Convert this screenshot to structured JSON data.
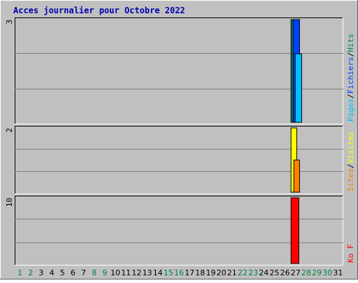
{
  "title": "Acces journalier pour Octobre 2022",
  "colors": {
    "title": "#0000b0",
    "background": "#c0c0c0",
    "hits": "#00805c",
    "files": "#0040ff",
    "pages": "#00c0ff",
    "visits": "#ffff00",
    "sites": "#ff8000",
    "kbytes": "#ff0000",
    "weekend_label": "#008040",
    "weekday_label": "#000000"
  },
  "chart_data": [
    {
      "type": "bar",
      "panel": "hits-files-pages",
      "ymax_label": "3",
      "ylim": [
        0,
        3
      ],
      "x": [
        1,
        2,
        3,
        4,
        5,
        6,
        7,
        8,
        9,
        10,
        11,
        12,
        13,
        14,
        15,
        16,
        17,
        18,
        19,
        20,
        21,
        22,
        23,
        24,
        25,
        26,
        27,
        28,
        29,
        30,
        31
      ],
      "x_label_colors": [
        "green",
        "green",
        "black",
        "black",
        "black",
        "black",
        "black",
        "green",
        "green",
        "black",
        "black",
        "black",
        "black",
        "black",
        "green",
        "green",
        "black",
        "black",
        "black",
        "black",
        "black",
        "green",
        "green",
        "black",
        "black",
        "black",
        "black",
        "green",
        "green",
        "green",
        "black"
      ],
      "series": [
        {
          "name": "Hits",
          "values": [
            0,
            0,
            0,
            0,
            0,
            0,
            0,
            0,
            0,
            0,
            0,
            0,
            0,
            0,
            0,
            0,
            0,
            0,
            0,
            0,
            0,
            0,
            0,
            0,
            0,
            0,
            3,
            0,
            0,
            0,
            0
          ]
        },
        {
          "name": "Fichiers",
          "values": [
            0,
            0,
            0,
            0,
            0,
            0,
            0,
            0,
            0,
            0,
            0,
            0,
            0,
            0,
            0,
            0,
            0,
            0,
            0,
            0,
            0,
            0,
            0,
            0,
            0,
            0,
            3,
            0,
            0,
            0,
            0
          ]
        },
        {
          "name": "Pages",
          "values": [
            0,
            0,
            0,
            0,
            0,
            0,
            0,
            0,
            0,
            0,
            0,
            0,
            0,
            0,
            0,
            0,
            0,
            0,
            0,
            0,
            0,
            0,
            0,
            0,
            0,
            0,
            2,
            0,
            0,
            0,
            0
          ]
        }
      ],
      "legend": [
        "Pages",
        "/",
        "Fichiers",
        "/",
        "Hits"
      ]
    },
    {
      "type": "bar",
      "panel": "visits-sites",
      "ymax_label": "2",
      "ylim": [
        0,
        2
      ],
      "series": [
        {
          "name": "Visites",
          "values": [
            0,
            0,
            0,
            0,
            0,
            0,
            0,
            0,
            0,
            0,
            0,
            0,
            0,
            0,
            0,
            0,
            0,
            0,
            0,
            0,
            0,
            0,
            0,
            0,
            0,
            0,
            2,
            0,
            0,
            0,
            0
          ]
        },
        {
          "name": "Sites",
          "values": [
            0,
            0,
            0,
            0,
            0,
            0,
            0,
            0,
            0,
            0,
            0,
            0,
            0,
            0,
            0,
            0,
            0,
            0,
            0,
            0,
            0,
            0,
            0,
            0,
            0,
            0,
            1,
            0,
            0,
            0,
            0
          ]
        }
      ],
      "legend": [
        "Sites",
        "/",
        "Visites"
      ]
    },
    {
      "type": "bar",
      "panel": "kbytes",
      "ymax_label": "10",
      "ylim": [
        0,
        10
      ],
      "series": [
        {
          "name": "Ko F",
          "values": [
            0,
            0,
            0,
            0,
            0,
            0,
            0,
            0,
            0,
            0,
            0,
            0,
            0,
            0,
            0,
            0,
            0,
            0,
            0,
            0,
            0,
            0,
            0,
            0,
            0,
            0,
            10,
            0,
            0,
            0,
            0
          ]
        }
      ],
      "legend": [
        "Ko F"
      ]
    }
  ]
}
